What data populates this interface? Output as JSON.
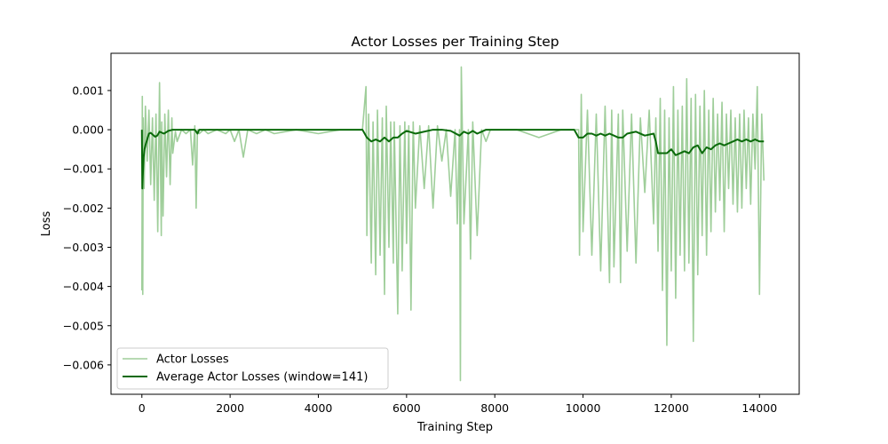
{
  "chart_data": {
    "type": "line",
    "title": "Actor Losses per Training Step",
    "xlabel": "Training Step",
    "ylabel": "Loss",
    "xlim": [
      -700,
      14900
    ],
    "ylim": [
      -0.00675,
      0.00195
    ],
    "x_ticks": [
      0,
      2000,
      4000,
      6000,
      8000,
      10000,
      12000,
      14000
    ],
    "x_tick_labels": [
      "0",
      "2000",
      "4000",
      "6000",
      "8000",
      "10000",
      "12000",
      "14000"
    ],
    "y_ticks": [
      0.001,
      0.0,
      -0.001,
      -0.002,
      -0.003,
      -0.004,
      -0.005,
      -0.006
    ],
    "y_tick_labels": [
      "0.001",
      "0.000",
      "−0.001",
      "−0.002",
      "−0.003",
      "−0.004",
      "−0.005",
      "−0.006"
    ],
    "grid": false,
    "legend_position": "lower-left",
    "series": [
      {
        "name": "Actor Losses",
        "color": "#9fce9a",
        "line_width": 1.6,
        "x": [
          0,
          10,
          20,
          30,
          50,
          80,
          120,
          160,
          200,
          240,
          280,
          320,
          360,
          400,
          440,
          450,
          480,
          520,
          560,
          600,
          640,
          680,
          700,
          760,
          800,
          900,
          1000,
          1100,
          1150,
          1200,
          1230,
          1260,
          1300,
          1400,
          1500,
          1700,
          1900,
          2000,
          2100,
          2200,
          2300,
          2400,
          2600,
          2800,
          3000,
          3500,
          4000,
          4500,
          5000,
          5080,
          5100,
          5140,
          5200,
          5240,
          5300,
          5340,
          5400,
          5450,
          5500,
          5540,
          5600,
          5640,
          5700,
          5720,
          5800,
          5850,
          5900,
          5960,
          6000,
          6050,
          6100,
          6150,
          6200,
          6300,
          6400,
          6500,
          6600,
          6700,
          6800,
          6900,
          7000,
          7100,
          7150,
          7200,
          7220,
          7240,
          7300,
          7400,
          7450,
          7500,
          7600,
          7700,
          7800,
          7900,
          8000,
          8500,
          9000,
          9500,
          9800,
          9900,
          9920,
          9960,
          10000,
          10100,
          10200,
          10300,
          10400,
          10500,
          10600,
          10650,
          10700,
          10800,
          10850,
          10900,
          11000,
          11100,
          11200,
          11300,
          11400,
          11500,
          11600,
          11650,
          11700,
          11750,
          11800,
          11850,
          11900,
          11950,
          12000,
          12050,
          12100,
          12150,
          12200,
          12250,
          12300,
          12350,
          12400,
          12450,
          12500,
          12550,
          12600,
          12650,
          12700,
          12750,
          12800,
          12850,
          12900,
          12950,
          13000,
          13050,
          13100,
          13150,
          13200,
          13250,
          13300,
          13350,
          13400,
          13450,
          13500,
          13550,
          13600,
          13650,
          13700,
          13750,
          13800,
          13850,
          13900,
          13950,
          14000,
          14050,
          14100
        ],
        "values": [
          -0.0041,
          0.00085,
          -0.0042,
          0.0003,
          -0.0015,
          0.0006,
          -0.0008,
          0.0005,
          -0.0014,
          0.0003,
          -0.0018,
          0.0004,
          -0.0026,
          0.0012,
          -0.0027,
          0.0002,
          -0.0022,
          0.0004,
          -0.0012,
          0.0005,
          -0.0014,
          0.0003,
          -0.0006,
          -5e-05,
          -0.0003,
          0.0,
          -0.0001,
          0.0,
          -0.0009,
          0.0001,
          -0.002,
          0.0,
          -0.0001,
          0.0,
          -0.0001,
          0.0,
          -0.0001,
          0.0,
          -0.0003,
          0.0,
          -0.0007,
          0.0,
          -0.0001,
          0.0,
          -0.0001,
          0.0,
          -0.0001,
          0.0,
          0.0,
          0.0011,
          -0.0027,
          0.0004,
          -0.0034,
          0.0002,
          -0.0037,
          0.0005,
          -0.0032,
          0.0003,
          -0.0042,
          0.0006,
          -0.003,
          0.0002,
          -0.0034,
          0.0002,
          -0.0047,
          0.0001,
          -0.0036,
          0.0002,
          -0.0029,
          0.0001,
          -0.0046,
          0.0002,
          -0.002,
          0.0001,
          -0.0015,
          0.0001,
          -0.002,
          0.0001,
          -0.0008,
          0.0,
          -0.0017,
          0.0,
          -0.0024,
          0.0,
          -0.0064,
          0.0016,
          -0.0024,
          0.0,
          -0.0033,
          0.0002,
          -0.0027,
          0.0,
          -0.0003,
          0.0,
          0.0,
          0.0,
          -0.0002,
          0.0,
          0.0,
          0.0,
          -0.0032,
          0.0009,
          -0.0026,
          0.0005,
          -0.0032,
          0.0004,
          -0.0036,
          0.0006,
          -0.0039,
          0.0005,
          -0.0035,
          0.0004,
          -0.0039,
          0.0005,
          -0.0031,
          0.0004,
          -0.0034,
          0.0003,
          -0.0016,
          0.0005,
          -0.0024,
          0.0003,
          -0.0031,
          0.0008,
          -0.0041,
          0.0005,
          -0.0055,
          0.0003,
          -0.0036,
          0.0011,
          -0.0043,
          0.0005,
          -0.0032,
          0.0006,
          -0.0036,
          0.0013,
          -0.0034,
          0.0008,
          -0.0054,
          0.0009,
          -0.0037,
          0.0006,
          -0.0027,
          0.001,
          -0.0032,
          0.0005,
          -0.0026,
          0.0008,
          -0.0021,
          0.0004,
          -0.0018,
          0.0007,
          -0.0026,
          0.0004,
          -0.0015,
          0.0005,
          -0.0019,
          0.0003,
          -0.0021,
          0.0004,
          -0.002,
          0.0005,
          -0.0015,
          0.0003,
          -0.0019,
          0.0004,
          -0.001,
          0.0011,
          -0.0042,
          0.0004,
          -0.0013
        ]
      },
      {
        "name": "Average Actor Losses (window=141)",
        "color": "#0a6a0a",
        "line_width": 2.0,
        "x": [
          0,
          10,
          20,
          40,
          60,
          80,
          120,
          160,
          200,
          300,
          350,
          400,
          500,
          600,
          700,
          800,
          1000,
          1200,
          1260,
          1300,
          2000,
          3000,
          4000,
          5000,
          5100,
          5200,
          5300,
          5400,
          5500,
          5600,
          5700,
          5800,
          5900,
          6000,
          6200,
          6400,
          6600,
          6800,
          7000,
          7200,
          7300,
          7400,
          7500,
          7600,
          7700,
          7800,
          8000,
          9000,
          9800,
          9900,
          10000,
          10100,
          10200,
          10300,
          10400,
          10500,
          10600,
          10700,
          10800,
          10900,
          11000,
          11200,
          11400,
          11600,
          11650,
          11700,
          11800,
          11900,
          12000,
          12100,
          12200,
          12300,
          12400,
          12500,
          12600,
          12700,
          12800,
          12900,
          13000,
          13100,
          13200,
          13300,
          13400,
          13500,
          13600,
          13700,
          13800,
          13900,
          14000,
          14100
        ],
        "values": [
          0.0,
          -0.0015,
          -0.0012,
          -0.0007,
          -0.0005,
          -0.0004,
          -0.00025,
          -0.0001,
          -8e-05,
          -0.00018,
          -0.00015,
          -5e-05,
          -0.0001,
          -3e-05,
          0.0,
          0.0,
          0.0,
          0.0,
          -0.0001,
          0.0,
          0.0,
          0.0,
          0.0,
          0.0,
          -0.0002,
          -0.0003,
          -0.00025,
          -0.0003,
          -0.0002,
          -0.0003,
          -0.0002,
          -0.0002,
          -0.0001,
          -3e-05,
          -0.0001,
          -5e-05,
          0.0,
          0.0,
          -3e-05,
          -0.00015,
          -5e-05,
          -0.0001,
          -3e-05,
          -0.0001,
          -5e-05,
          0.0,
          0.0,
          0.0,
          0.0,
          -0.0002,
          -0.0002,
          -0.0001,
          -0.0001,
          -0.00015,
          -0.0001,
          -0.00015,
          -0.0001,
          -0.00015,
          -0.0002,
          -0.0002,
          -0.0001,
          -5e-05,
          -0.00015,
          -0.0001,
          -0.0003,
          -0.0006,
          -0.0006,
          -0.0006,
          -0.0005,
          -0.00065,
          -0.0006,
          -0.00055,
          -0.0006,
          -0.00045,
          -0.0004,
          -0.0006,
          -0.00045,
          -0.0005,
          -0.0004,
          -0.00035,
          -0.0004,
          -0.00035,
          -0.0003,
          -0.00025,
          -0.0003,
          -0.00025,
          -0.0003,
          -0.00025,
          -0.0003,
          -0.0003
        ]
      }
    ]
  }
}
